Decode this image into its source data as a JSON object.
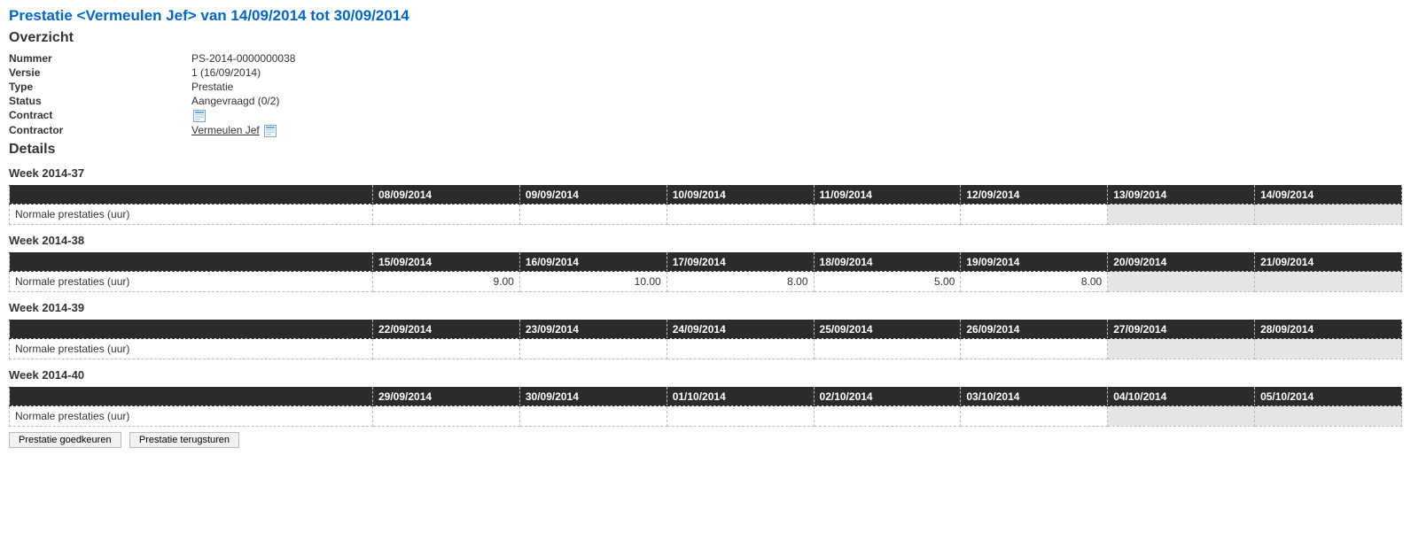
{
  "title": "Prestatie <Vermeulen Jef> van 14/09/2014 tot 30/09/2014",
  "overview": {
    "heading": "Overzicht",
    "fields": {
      "nummer_label": "Nummer",
      "nummer_value": "PS-2014-0000000038",
      "versie_label": "Versie",
      "versie_value": "1 (16/09/2014)",
      "type_label": "Type",
      "type_value": "Prestatie",
      "status_label": "Status",
      "status_value": "Aangevraagd (0/2)",
      "contract_label": "Contract",
      "contract_value": "",
      "contractor_label": "Contractor",
      "contractor_value": "Vermeulen Jef"
    }
  },
  "details": {
    "heading": "Details",
    "row_label": "Normale prestaties (uur)",
    "weeks": [
      {
        "title": "Week 2014-37",
        "days": [
          "08/09/2014",
          "09/09/2014",
          "10/09/2014",
          "11/09/2014",
          "12/09/2014",
          "13/09/2014",
          "14/09/2014"
        ],
        "weekend": [
          false,
          false,
          false,
          false,
          false,
          true,
          true
        ],
        "values": [
          "",
          "",
          "",
          "",
          "",
          "",
          ""
        ]
      },
      {
        "title": "Week 2014-38",
        "days": [
          "15/09/2014",
          "16/09/2014",
          "17/09/2014",
          "18/09/2014",
          "19/09/2014",
          "20/09/2014",
          "21/09/2014"
        ],
        "weekend": [
          false,
          false,
          false,
          false,
          false,
          true,
          true
        ],
        "values": [
          "9.00",
          "10.00",
          "8.00",
          "5.00",
          "8.00",
          "",
          ""
        ]
      },
      {
        "title": "Week 2014-39",
        "days": [
          "22/09/2014",
          "23/09/2014",
          "24/09/2014",
          "25/09/2014",
          "26/09/2014",
          "27/09/2014",
          "28/09/2014"
        ],
        "weekend": [
          false,
          false,
          false,
          false,
          false,
          true,
          true
        ],
        "values": [
          "",
          "",
          "",
          "",
          "",
          "",
          ""
        ]
      },
      {
        "title": "Week 2014-40",
        "days": [
          "29/09/2014",
          "30/09/2014",
          "01/10/2014",
          "02/10/2014",
          "03/10/2014",
          "04/10/2014",
          "05/10/2014"
        ],
        "weekend": [
          false,
          false,
          false,
          false,
          false,
          true,
          true
        ],
        "values": [
          "",
          "",
          "",
          "",
          "",
          "",
          ""
        ]
      }
    ]
  },
  "buttons": {
    "approve": "Prestatie goedkeuren",
    "return": "Prestatie terugsturen"
  },
  "style": {
    "title_color": "#0066cc",
    "header_bg": "#2b2b2b",
    "header_fg": "#ffffff",
    "border_color": "#bbbbbb",
    "weekend_bg": "#e6e6e6"
  }
}
